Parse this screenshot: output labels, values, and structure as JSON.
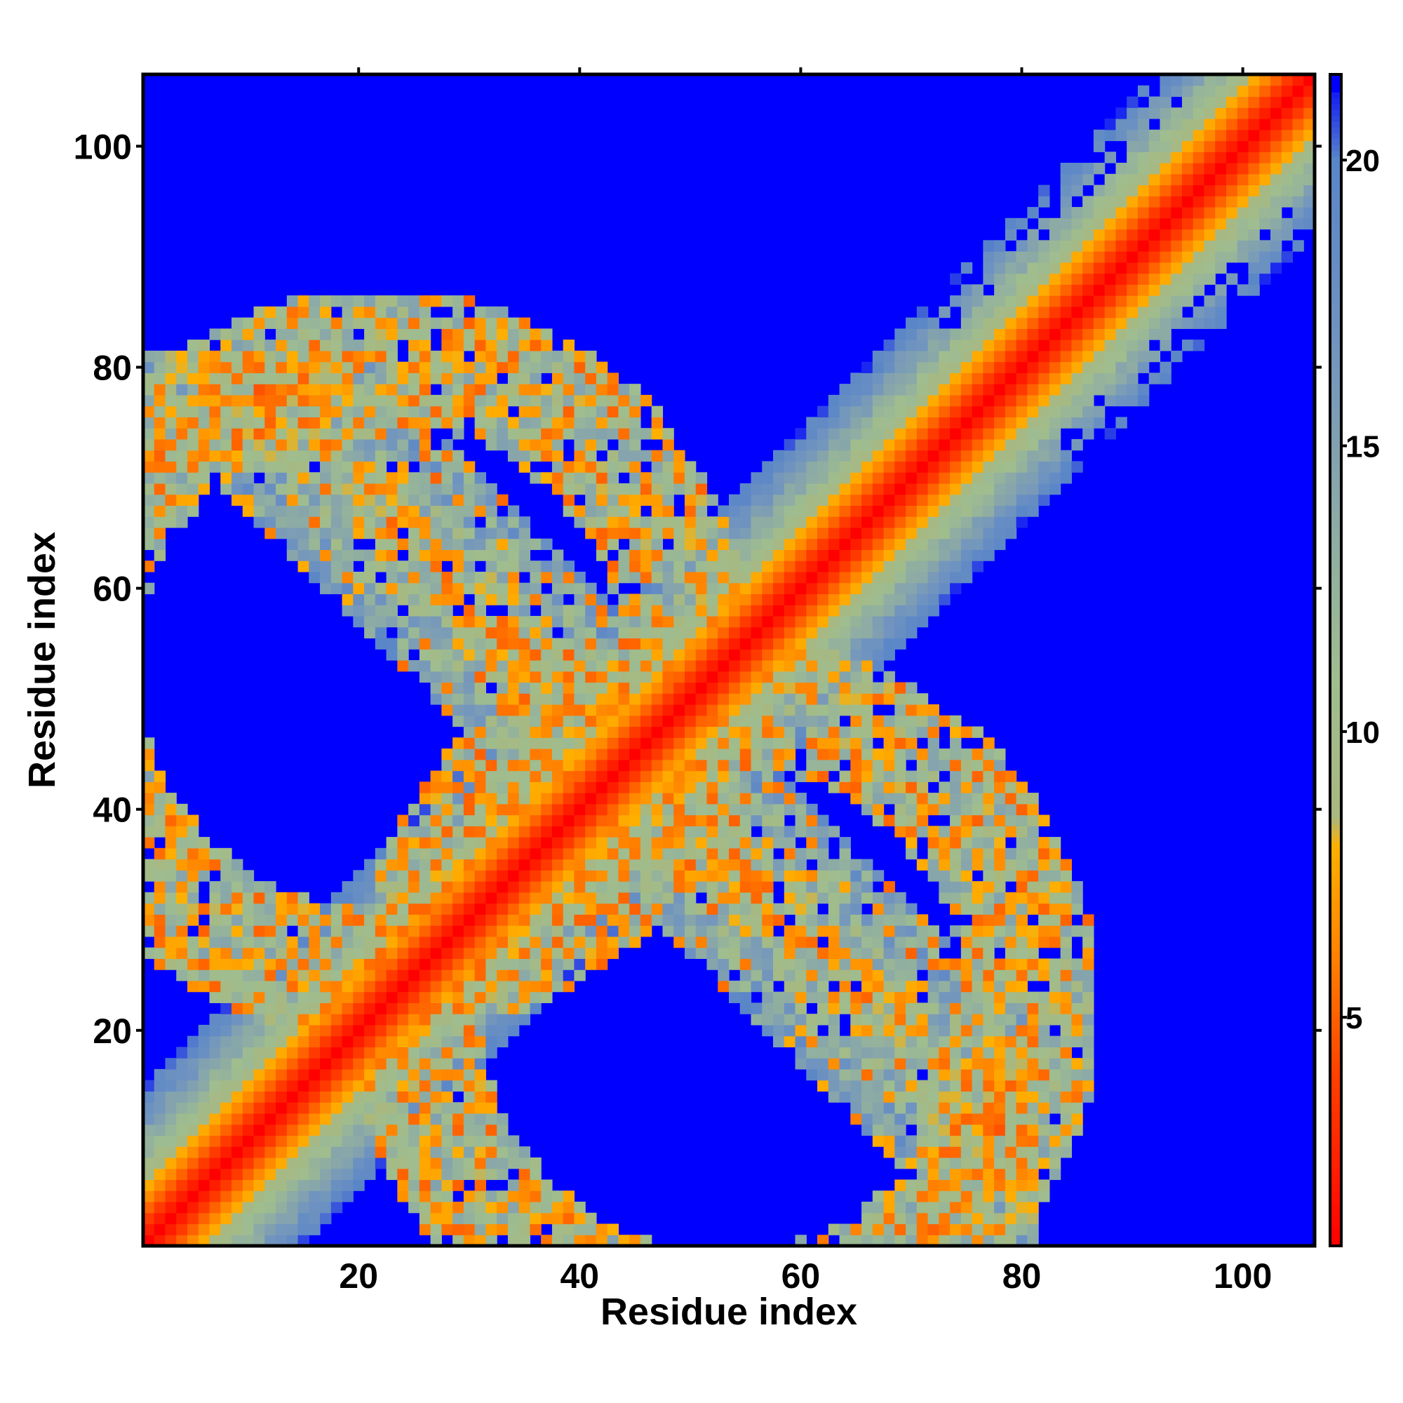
{
  "chart_data": {
    "type": "heatmap",
    "title": "",
    "xlabel": "Residue index",
    "ylabel": "Residue index",
    "n_residues": 106,
    "xlim": [
      1,
      106
    ],
    "ylim": [
      1,
      106
    ],
    "x_ticks": [
      20,
      40,
      60,
      80,
      100
    ],
    "y_ticks": [
      20,
      40,
      60,
      80,
      100
    ],
    "x_tick_labels": [
      "20",
      "40",
      "60",
      "80",
      "100"
    ],
    "y_tick_labels": [
      "20",
      "40",
      "60",
      "80",
      "100"
    ],
    "colorbar": {
      "range": [
        1,
        21.5
      ],
      "ticks": [
        5,
        10,
        15,
        20
      ],
      "tick_labels": [
        "5",
        "10",
        "15",
        "20"
      ],
      "placement": "right"
    },
    "colormap": [
      {
        "value": 1,
        "color": "#ff0000"
      },
      {
        "value": 4,
        "color": "#ff4000"
      },
      {
        "value": 6,
        "color": "#ff8000"
      },
      {
        "value": 8,
        "color": "#ffb000"
      },
      {
        "value": 8.5,
        "color": "#a8b880"
      },
      {
        "value": 11,
        "color": "#9fbd8f"
      },
      {
        "value": 14,
        "color": "#8aa8a8"
      },
      {
        "value": 17,
        "color": "#6f93c0"
      },
      {
        "value": 20,
        "color": "#5a86c8"
      },
      {
        "value": 21.5,
        "color": "#0000ff"
      }
    ],
    "background_color": "#0000ff",
    "cutoff": 21.5,
    "structure": {
      "main_diagonal": {
        "from": 1,
        "to": 106,
        "band_width_residues": 14
      },
      "antiparallel_band": {
        "cross_sum": 89,
        "x_range": [
          1,
          81
        ],
        "band_width_residues": 22
      },
      "description_markers": [
        "loop region near (20,55)",
        "loop region near (55,20)"
      ]
    },
    "grid": false,
    "legend": "colorbar-right"
  }
}
